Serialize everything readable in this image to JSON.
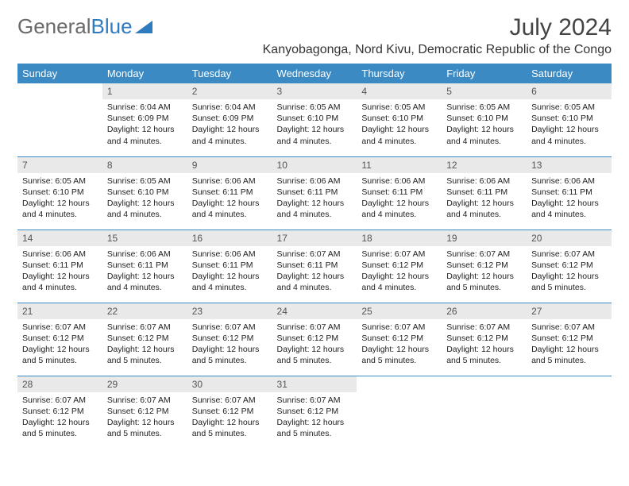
{
  "brand": {
    "part1": "General",
    "part2": "Blue"
  },
  "title": "July 2024",
  "subtitle": "Kanyobagonga, Nord Kivu, Democratic Republic of the Congo",
  "days_of_week": [
    "Sunday",
    "Monday",
    "Tuesday",
    "Wednesday",
    "Thursday",
    "Friday",
    "Saturday"
  ],
  "colors": {
    "header_bg": "#3b8ac4",
    "header_text": "#ffffff",
    "daynum_bg": "#e9e9e9",
    "border": "#3b8ac4",
    "brand_gray": "#6a6a6a",
    "brand_blue": "#2f7bbf"
  },
  "weeks": [
    [
      null,
      {
        "n": "1",
        "sr": "6:04 AM",
        "ss": "6:09 PM",
        "dl": "12 hours and 4 minutes."
      },
      {
        "n": "2",
        "sr": "6:04 AM",
        "ss": "6:09 PM",
        "dl": "12 hours and 4 minutes."
      },
      {
        "n": "3",
        "sr": "6:05 AM",
        "ss": "6:10 PM",
        "dl": "12 hours and 4 minutes."
      },
      {
        "n": "4",
        "sr": "6:05 AM",
        "ss": "6:10 PM",
        "dl": "12 hours and 4 minutes."
      },
      {
        "n": "5",
        "sr": "6:05 AM",
        "ss": "6:10 PM",
        "dl": "12 hours and 4 minutes."
      },
      {
        "n": "6",
        "sr": "6:05 AM",
        "ss": "6:10 PM",
        "dl": "12 hours and 4 minutes."
      }
    ],
    [
      {
        "n": "7",
        "sr": "6:05 AM",
        "ss": "6:10 PM",
        "dl": "12 hours and 4 minutes."
      },
      {
        "n": "8",
        "sr": "6:05 AM",
        "ss": "6:10 PM",
        "dl": "12 hours and 4 minutes."
      },
      {
        "n": "9",
        "sr": "6:06 AM",
        "ss": "6:11 PM",
        "dl": "12 hours and 4 minutes."
      },
      {
        "n": "10",
        "sr": "6:06 AM",
        "ss": "6:11 PM",
        "dl": "12 hours and 4 minutes."
      },
      {
        "n": "11",
        "sr": "6:06 AM",
        "ss": "6:11 PM",
        "dl": "12 hours and 4 minutes."
      },
      {
        "n": "12",
        "sr": "6:06 AM",
        "ss": "6:11 PM",
        "dl": "12 hours and 4 minutes."
      },
      {
        "n": "13",
        "sr": "6:06 AM",
        "ss": "6:11 PM",
        "dl": "12 hours and 4 minutes."
      }
    ],
    [
      {
        "n": "14",
        "sr": "6:06 AM",
        "ss": "6:11 PM",
        "dl": "12 hours and 4 minutes."
      },
      {
        "n": "15",
        "sr": "6:06 AM",
        "ss": "6:11 PM",
        "dl": "12 hours and 4 minutes."
      },
      {
        "n": "16",
        "sr": "6:06 AM",
        "ss": "6:11 PM",
        "dl": "12 hours and 4 minutes."
      },
      {
        "n": "17",
        "sr": "6:07 AM",
        "ss": "6:11 PM",
        "dl": "12 hours and 4 minutes."
      },
      {
        "n": "18",
        "sr": "6:07 AM",
        "ss": "6:12 PM",
        "dl": "12 hours and 4 minutes."
      },
      {
        "n": "19",
        "sr": "6:07 AM",
        "ss": "6:12 PM",
        "dl": "12 hours and 5 minutes."
      },
      {
        "n": "20",
        "sr": "6:07 AM",
        "ss": "6:12 PM",
        "dl": "12 hours and 5 minutes."
      }
    ],
    [
      {
        "n": "21",
        "sr": "6:07 AM",
        "ss": "6:12 PM",
        "dl": "12 hours and 5 minutes."
      },
      {
        "n": "22",
        "sr": "6:07 AM",
        "ss": "6:12 PM",
        "dl": "12 hours and 5 minutes."
      },
      {
        "n": "23",
        "sr": "6:07 AM",
        "ss": "6:12 PM",
        "dl": "12 hours and 5 minutes."
      },
      {
        "n": "24",
        "sr": "6:07 AM",
        "ss": "6:12 PM",
        "dl": "12 hours and 5 minutes."
      },
      {
        "n": "25",
        "sr": "6:07 AM",
        "ss": "6:12 PM",
        "dl": "12 hours and 5 minutes."
      },
      {
        "n": "26",
        "sr": "6:07 AM",
        "ss": "6:12 PM",
        "dl": "12 hours and 5 minutes."
      },
      {
        "n": "27",
        "sr": "6:07 AM",
        "ss": "6:12 PM",
        "dl": "12 hours and 5 minutes."
      }
    ],
    [
      {
        "n": "28",
        "sr": "6:07 AM",
        "ss": "6:12 PM",
        "dl": "12 hours and 5 minutes."
      },
      {
        "n": "29",
        "sr": "6:07 AM",
        "ss": "6:12 PM",
        "dl": "12 hours and 5 minutes."
      },
      {
        "n": "30",
        "sr": "6:07 AM",
        "ss": "6:12 PM",
        "dl": "12 hours and 5 minutes."
      },
      {
        "n": "31",
        "sr": "6:07 AM",
        "ss": "6:12 PM",
        "dl": "12 hours and 5 minutes."
      },
      null,
      null,
      null
    ]
  ],
  "labels": {
    "sunrise": "Sunrise:",
    "sunset": "Sunset:",
    "daylight": "Daylight:"
  }
}
